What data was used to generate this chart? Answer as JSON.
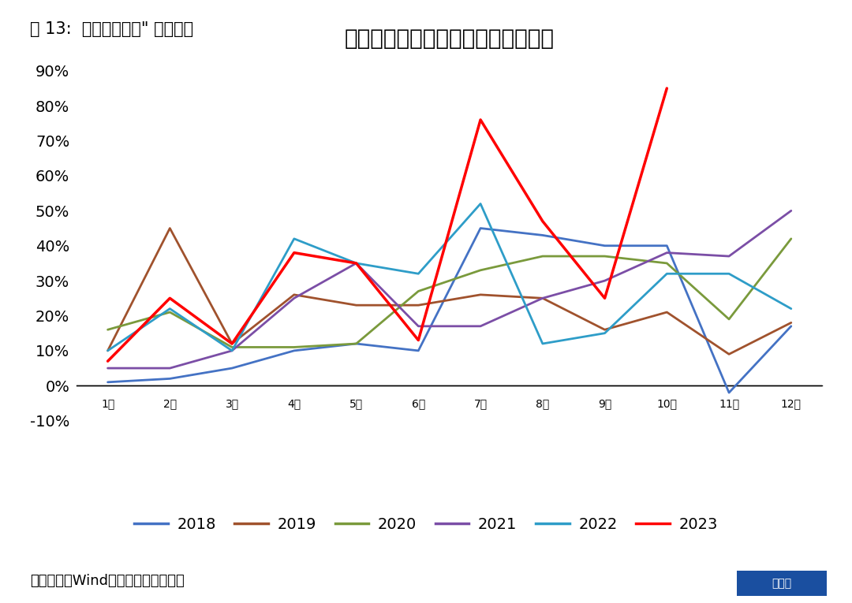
{
  "title": "政府债融资占社融比重月度分布规律",
  "fig_label": "图 13:  财政式稳信用\" 有望延续",
  "source_text": "数据来源：Wind，国泰君安证券研究",
  "months": [
    "1月",
    "2月",
    "3月",
    "4月",
    "5月",
    "6月",
    "7月",
    "8月",
    "9月",
    "10月",
    "11月",
    "12月"
  ],
  "series_order": [
    "2018",
    "2019",
    "2020",
    "2021",
    "2022",
    "2023"
  ],
  "series": {
    "2018": [
      1,
      2,
      5,
      10,
      12,
      10,
      45,
      43,
      40,
      40,
      -2,
      17
    ],
    "2019": [
      10,
      45,
      12,
      26,
      23,
      23,
      26,
      25,
      16,
      21,
      9,
      18
    ],
    "2020": [
      16,
      21,
      11,
      11,
      12,
      27,
      33,
      37,
      37,
      35,
      19,
      42
    ],
    "2021": [
      5,
      5,
      10,
      25,
      35,
      17,
      17,
      25,
      30,
      38,
      37,
      50
    ],
    "2022": [
      10,
      22,
      10,
      42,
      35,
      32,
      52,
      12,
      15,
      32,
      32,
      22
    ],
    "2023": [
      7,
      25,
      12,
      38,
      35,
      13,
      76,
      47,
      25,
      85,
      null,
      null
    ]
  },
  "colors": {
    "2018": "#4472C4",
    "2019": "#A0522D",
    "2020": "#7A9A3C",
    "2021": "#7B4EA6",
    "2022": "#2E9DC8",
    "2023": "#FF0000"
  },
  "linewidths": {
    "2018": 2.0,
    "2019": 2.0,
    "2020": 2.0,
    "2021": 2.0,
    "2022": 2.0,
    "2023": 2.5
  },
  "ylim": [
    -0.13,
    0.93
  ],
  "yticks": [
    -0.1,
    0.0,
    0.1,
    0.2,
    0.3,
    0.4,
    0.5,
    0.6,
    0.7,
    0.8,
    0.9
  ],
  "background_color": "#FFFFFF",
  "title_fontsize": 20,
  "fig_label_fontsize": 15,
  "source_fontsize": 13,
  "legend_fontsize": 14,
  "tick_fontsize": 14
}
